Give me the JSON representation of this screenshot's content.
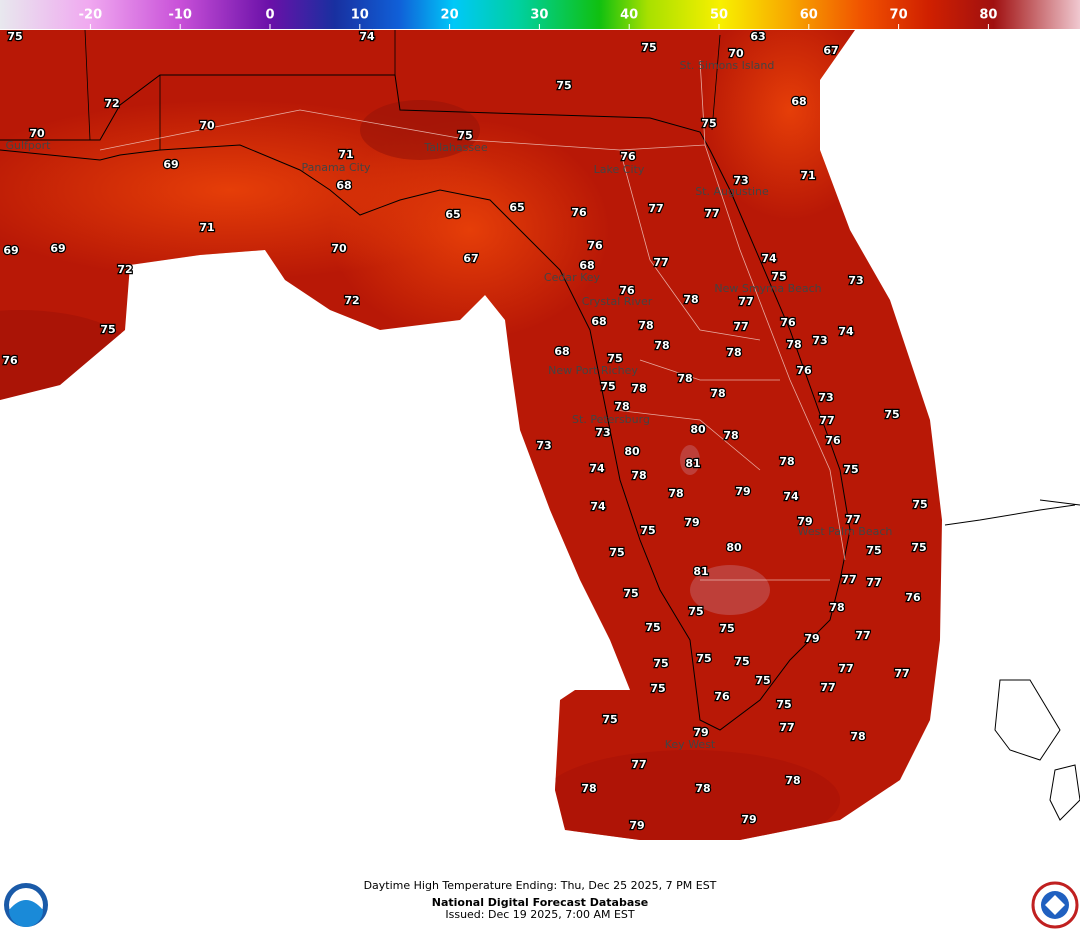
{
  "colorbar": {
    "ticks": [
      -20,
      -10,
      0,
      10,
      20,
      30,
      40,
      50,
      60,
      70,
      80
    ]
  },
  "cities": [
    "Gulfport",
    "St. Simons Island",
    "Tallahassee",
    "Panama City",
    "Lake City",
    "St. Augustine",
    "Cedar Key",
    "Crystal River",
    "New Port Richey",
    "St. Petersburg",
    "New Smyrna Beach",
    "West Palm Beach",
    "Key West"
  ],
  "temperatures": [
    75,
    74,
    75,
    70,
    63,
    67,
    72,
    75,
    68,
    70,
    70,
    75,
    75,
    71,
    69,
    76,
    73,
    71,
    68,
    65,
    65,
    76,
    77,
    77,
    71,
    69,
    69,
    70,
    67,
    76,
    74,
    73,
    72,
    68,
    77,
    75,
    72,
    76,
    78,
    77,
    75,
    68,
    78,
    77,
    76,
    74,
    76,
    68,
    78,
    78,
    78,
    73,
    75,
    78,
    76,
    75,
    78,
    78,
    73,
    75,
    78,
    77,
    73,
    73,
    80,
    78,
    76,
    80,
    81,
    78,
    75,
    74,
    78,
    78,
    79,
    74,
    75,
    74,
    79,
    79,
    77,
    75,
    80,
    75,
    75,
    75,
    81,
    77,
    77,
    75,
    78,
    76,
    75,
    75,
    75,
    79,
    77,
    75,
    75,
    75,
    77,
    77,
    75,
    77,
    75,
    76,
    75,
    75,
    77,
    79,
    78,
    77,
    78,
    78,
    78,
    79,
    79
  ],
  "footer": {
    "line1": "Daytime High Temperature Ending: Thu, Dec 25 2025, 7 PM EST",
    "line2": "National Digital Forecast Database",
    "line3": "Issued: Dec 19 2025, 7:00 AM EST"
  }
}
